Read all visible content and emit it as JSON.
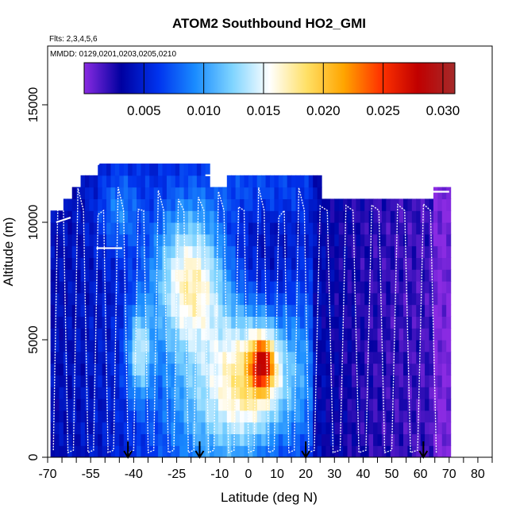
{
  "chart_data": {
    "type": "heatmap",
    "title": "ATOM2 Southbound HO2_GMI",
    "flights_label": "Flts: 2,3,4,5,6",
    "dates_label": "MMDD: 0129,0201,0203,0205,0210",
    "xlabel": "Latitude (deg N)",
    "ylabel": "Altitude (m)",
    "xlim": [
      -70,
      85
    ],
    "ylim": [
      0,
      17500
    ],
    "x_ticks": [
      -70,
      -55,
      -40,
      -25,
      -10,
      0,
      10,
      20,
      30,
      40,
      50,
      60,
      70,
      80
    ],
    "x_tick_labels": [
      "-70",
      "-55",
      "-40",
      "-25",
      "-10",
      "0",
      "10",
      "20",
      "30",
      "40",
      "50",
      "60",
      "70",
      "80"
    ],
    "x_minor_ticks": [
      -65,
      -60,
      -50,
      -45,
      -35,
      -30,
      -20,
      -15,
      -5,
      5,
      15,
      25,
      35,
      45,
      55,
      65,
      75,
      85
    ],
    "y_ticks": [
      0,
      5000,
      10000,
      15000
    ],
    "y_tick_labels": [
      "0",
      "5000",
      "10000",
      "15000"
    ],
    "colorbar": {
      "min": 0.0,
      "max": 0.031,
      "ticks": [
        0.005,
        0.01,
        0.015,
        0.02,
        0.025,
        0.03
      ],
      "tick_labels": [
        "0.005",
        "0.010",
        "0.015",
        "0.020",
        "0.025",
        "0.030"
      ],
      "colors": [
        "#8a2be2",
        "#0000a0",
        "#0033ee",
        "#1a8cff",
        "#7fd4ff",
        "#ffffff",
        "#ffe066",
        "#ffa500",
        "#ff3300",
        "#c00000",
        "#a52a2a"
      ]
    },
    "column_top_altitude_m": [
      {
        "lat_min": -69,
        "lat_max": -65,
        "top": 10500
      },
      {
        "lat_min": -65,
        "lat_max": -62,
        "top": 11000
      },
      {
        "lat_min": -62,
        "lat_max": -58,
        "top": 11500
      },
      {
        "lat_min": -58,
        "lat_max": -52,
        "top": 12000
      },
      {
        "lat_min": -52,
        "lat_max": -14,
        "top": 12500
      },
      {
        "lat_min": -14,
        "lat_max": -8,
        "top": 11500
      },
      {
        "lat_min": -8,
        "lat_max": 25,
        "top": 12000
      },
      {
        "lat_min": 25,
        "lat_max": 65,
        "top": 11000
      },
      {
        "lat_min": 65,
        "lat_max": 71,
        "top": 11500
      }
    ],
    "high_value_regions": [
      {
        "lat_min": -42,
        "lat_max": 18,
        "alt_min": 0,
        "alt_max": 9000,
        "value": 0.018
      },
      {
        "lat_min": -30,
        "lat_max": -12,
        "alt_min": 6000,
        "alt_max": 10000,
        "value": 0.019
      },
      {
        "lat_min": -5,
        "lat_max": 15,
        "alt_min": 1000,
        "alt_max": 6000,
        "value": 0.021
      },
      {
        "lat_min": 1,
        "lat_max": 8,
        "alt_min": 3500,
        "alt_max": 5000,
        "value": 0.028
      }
    ],
    "series": [
      {
        "name": "flight track",
        "note": "white profile lines of aircraft ascents and descents between about 0 and 12500 m"
      }
    ],
    "flight_start_arrows_lat": [
      -42,
      -17,
      20,
      61
    ]
  }
}
